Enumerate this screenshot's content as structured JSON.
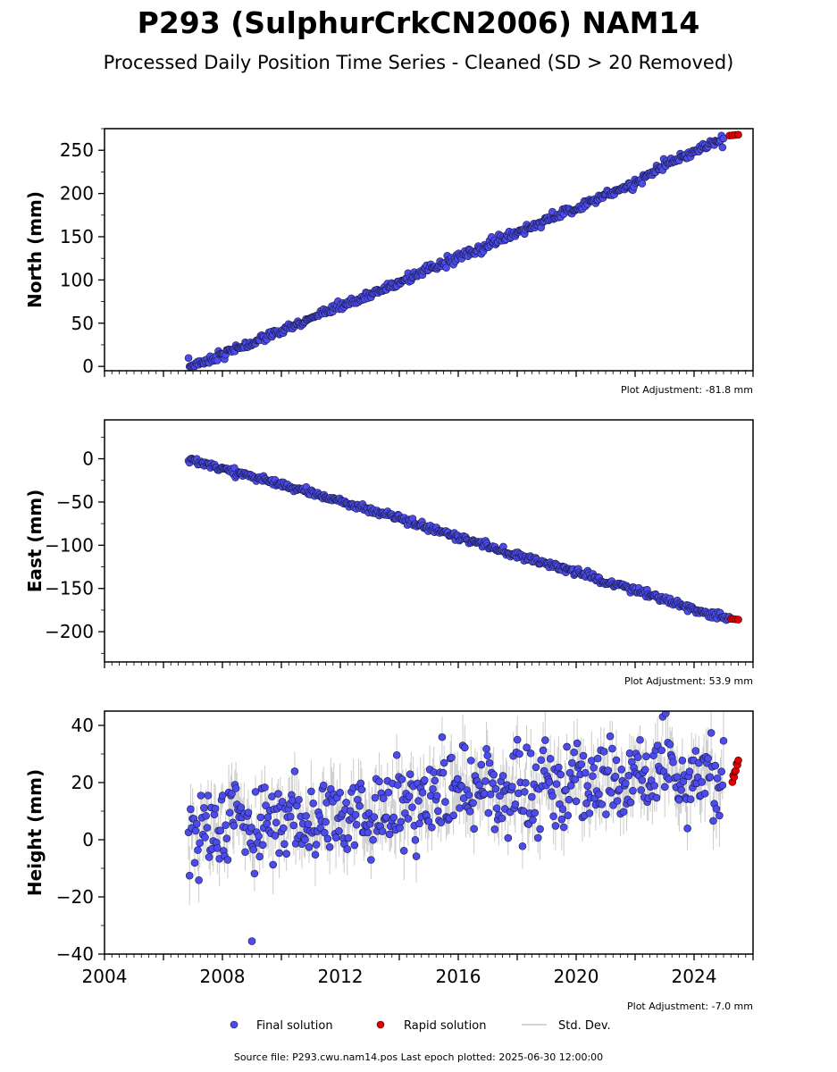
{
  "figure": {
    "title": "P293 (SulphurCrkCN2006) NAM14",
    "subtitle": "Processed Daily Position Time Series - Cleaned (SD > 20 Removed)",
    "source_line": "Source file: P293.cwu.nam14.pos  Last epoch plotted: 2025-06-30 12:00:00",
    "colors": {
      "final": "#4b4bee",
      "final_edge": "#1a1a40",
      "rapid": "#e00000",
      "std": "#a0a0a0"
    }
  },
  "legend": {
    "final": "Final solution",
    "rapid": "Rapid solution",
    "std": "Std. Dev."
  },
  "chart_data": [
    {
      "type": "scatter",
      "ylabel": "North (mm)",
      "xlim": [
        2004,
        2026
      ],
      "ylim": [
        -5,
        275
      ],
      "yticks": [
        "0",
        "50",
        "100",
        "150",
        "200",
        "250"
      ],
      "xticks": [
        "2004",
        "2008",
        "2012",
        "2016",
        "2020",
        "2024"
      ],
      "show_xtick_labels": false,
      "adjustment": "Plot Adjustment: -81.8 mm",
      "series": [
        {
          "key": "final",
          "x": [
            2006.85,
            2007.5,
            2008.0,
            2009.0,
            2010.0,
            2011.0,
            2012.0,
            2013.0,
            2014.0,
            2015.0,
            2016.0,
            2017.0,
            2018.0,
            2019.0,
            2020.0,
            2021.0,
            2022.0,
            2023.0,
            2024.0,
            2025.0
          ],
          "y": [
            0,
            7,
            14,
            27,
            41,
            55,
            69,
            83,
            97,
            112,
            126,
            140,
            155,
            169,
            183,
            198,
            212,
            233,
            248,
            264
          ],
          "noise": 2.5
        },
        {
          "key": "rapid",
          "x": [
            2025.2,
            2025.5
          ],
          "y": [
            267,
            268
          ]
        }
      ]
    },
    {
      "type": "scatter",
      "ylabel": "East (mm)",
      "xlim": [
        2004,
        2026
      ],
      "ylim": [
        -235,
        45
      ],
      "yticks": [
        "0",
        "−50",
        "−100",
        "−150",
        "−200"
      ],
      "xticks": [
        "2004",
        "2008",
        "2012",
        "2016",
        "2020",
        "2024"
      ],
      "show_xtick_labels": false,
      "adjustment": "Plot Adjustment: 53.9 mm",
      "series": [
        {
          "key": "final",
          "x": [
            2006.85,
            2008.0,
            2009.0,
            2010.0,
            2011.0,
            2012.0,
            2013.0,
            2014.0,
            2015.0,
            2016.0,
            2017.0,
            2018.0,
            2019.0,
            2020.0,
            2021.0,
            2022.0,
            2023.0,
            2024.0,
            2025.2
          ],
          "y": [
            0,
            -11,
            -20,
            -30,
            -39,
            -50,
            -59,
            -68,
            -80,
            -90,
            -100,
            -111,
            -121,
            -131,
            -142,
            -152,
            -163,
            -174,
            -185
          ],
          "noise": 2.0
        },
        {
          "key": "rapid",
          "x": [
            2025.25,
            2025.5
          ],
          "y": [
            -185,
            -186
          ]
        }
      ]
    },
    {
      "type": "scatter",
      "ylabel": "Height (mm)",
      "xlim": [
        2004,
        2026
      ],
      "ylim": [
        -40,
        45
      ],
      "yticks": [
        "−40",
        "−20",
        "0",
        "20",
        "40"
      ],
      "xticks": [
        "2004",
        "2008",
        "2012",
        "2016",
        "2020",
        "2024"
      ],
      "show_xtick_labels": true,
      "adjustment": "Plot Adjustment: -7.0 mm",
      "series": [
        {
          "key": "final",
          "x": [
            2006.85,
            2007.5,
            2008.0,
            2008.5,
            2009.0,
            2009.5,
            2010.0,
            2010.5,
            2011.0,
            2011.5,
            2012.0,
            2012.5,
            2013.0,
            2013.5,
            2014.0,
            2014.5,
            2015.0,
            2015.5,
            2016.0,
            2016.5,
            2017.0,
            2017.5,
            2018.0,
            2018.5,
            2019.0,
            2019.5,
            2020.0,
            2020.5,
            2021.0,
            2021.5,
            2022.0,
            2022.5,
            2023.0,
            2023.5,
            2024.0,
            2024.5,
            2025.0
          ],
          "y": [
            2,
            6,
            1,
            8,
            3,
            8,
            2,
            9,
            3,
            9,
            5,
            9,
            7,
            13,
            10,
            14,
            12,
            15,
            20,
            14,
            18,
            14,
            20,
            15,
            20,
            15,
            21,
            17,
            24,
            19,
            24,
            20,
            26,
            19,
            23,
            18,
            22
          ],
          "noise": 7.0
        },
        {
          "key": "rapid",
          "x": [
            2025.3,
            2025.5
          ],
          "y": [
            22,
            28
          ]
        }
      ]
    }
  ]
}
